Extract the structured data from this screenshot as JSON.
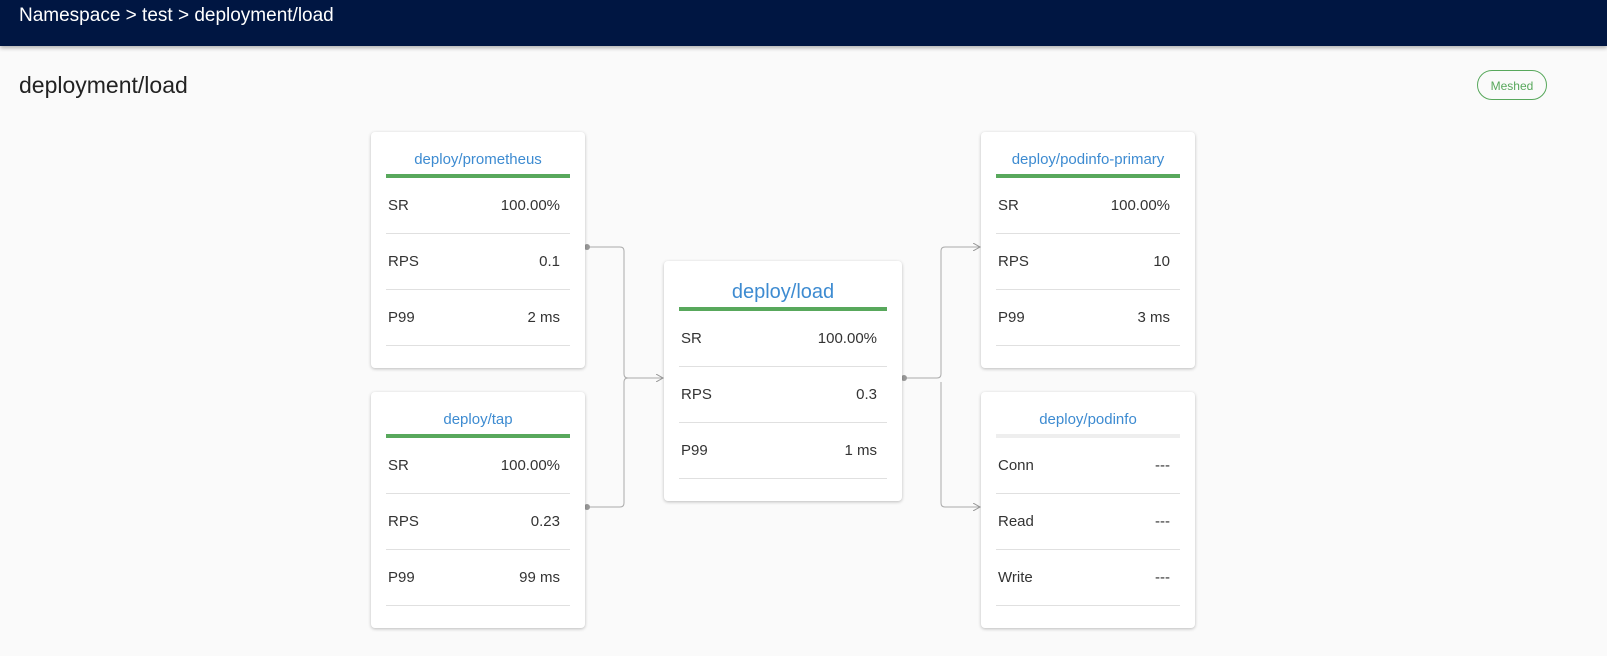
{
  "header": {
    "breadcrumb": "Namespace > test > deployment/load"
  },
  "page": {
    "title": "deployment/load",
    "status_badge": "Meshed"
  },
  "colors": {
    "header_bg": "#001642",
    "accent": "#3d8bd1",
    "success": "#58a85c"
  },
  "inbound": [
    {
      "name": "deploy/prometheus",
      "metrics": [
        {
          "label": "SR",
          "value": "100.00%"
        },
        {
          "label": "RPS",
          "value": "0.1"
        },
        {
          "label": "P99",
          "value": "2 ms"
        }
      ]
    },
    {
      "name": "deploy/tap",
      "metrics": [
        {
          "label": "SR",
          "value": "100.00%"
        },
        {
          "label": "RPS",
          "value": "0.23"
        },
        {
          "label": "P99",
          "value": "99 ms"
        }
      ]
    }
  ],
  "center": {
    "name": "deploy/load",
    "metrics": [
      {
        "label": "SR",
        "value": "100.00%"
      },
      {
        "label": "RPS",
        "value": "0.3"
      },
      {
        "label": "P99",
        "value": "1 ms"
      }
    ]
  },
  "outbound": [
    {
      "name": "deploy/podinfo-primary",
      "metrics": [
        {
          "label": "SR",
          "value": "100.00%"
        },
        {
          "label": "RPS",
          "value": "10"
        },
        {
          "label": "P99",
          "value": "3 ms"
        }
      ]
    },
    {
      "name": "deploy/podinfo",
      "metrics": [
        {
          "label": "Conn",
          "value": "---"
        },
        {
          "label": "Read",
          "value": "---"
        },
        {
          "label": "Write",
          "value": "---"
        }
      ]
    }
  ]
}
